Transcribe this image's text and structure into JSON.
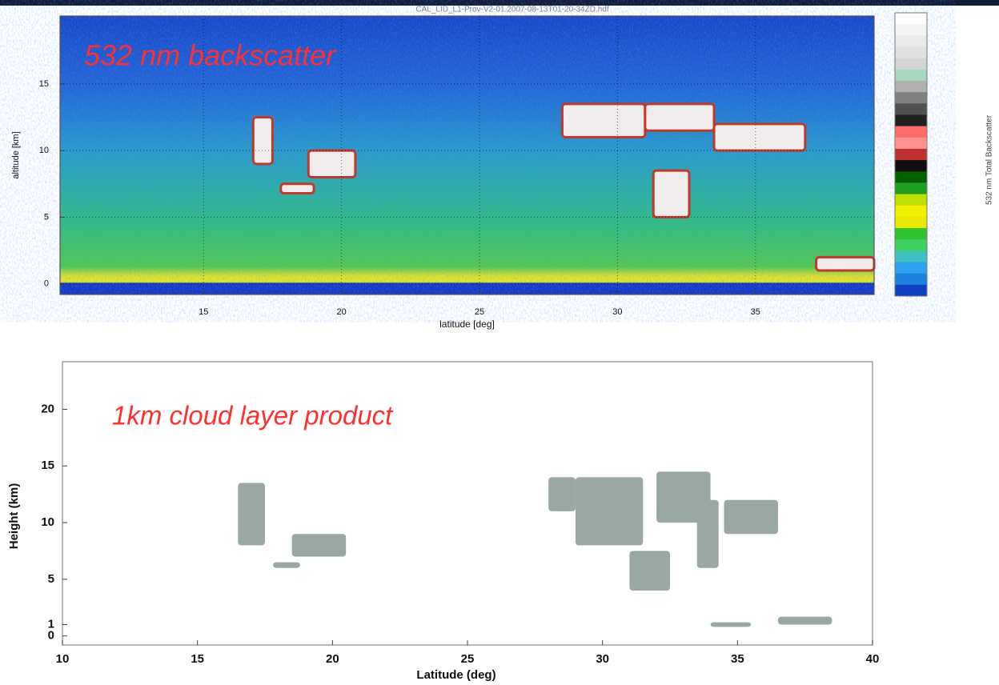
{
  "chart_data": [
    {
      "type": "heatmap",
      "title": "CAL_LID_L1-Prov-V2-01.2007-08-13T01-20-34ZD.hdf",
      "annotation": "532 nm backscatter",
      "xlabel": "latitude [deg]",
      "ylabel": "altitude [km]",
      "colorbar_label": "532 nm Total Backscatter",
      "xlim": [
        9.8,
        39.3
      ],
      "ylim": [
        -0.8,
        20.1
      ],
      "xticks": [
        15,
        20,
        25,
        30,
        35
      ],
      "yticks": [
        0,
        5,
        10,
        15
      ],
      "grid": true,
      "cloud_color": "#f2eded",
      "cloud_edge_color": "#c0392b",
      "clouds": [
        {
          "x": [
            16.8,
            17.5
          ],
          "y": [
            9,
            12.5
          ]
        },
        {
          "x": [
            17.8,
            19
          ],
          "y": [
            6.8,
            7.5
          ]
        },
        {
          "x": [
            18.8,
            20.5
          ],
          "y": [
            8,
            10
          ]
        },
        {
          "x": [
            28,
            31
          ],
          "y": [
            11,
            13.5
          ]
        },
        {
          "x": [
            31,
            33.5
          ],
          "y": [
            11.5,
            13.5
          ]
        },
        {
          "x": [
            33.5,
            36.8
          ],
          "y": [
            10,
            12
          ]
        },
        {
          "x": [
            31.3,
            32.6
          ],
          "y": [
            5,
            8.5
          ]
        },
        {
          "x": [
            37.2,
            39.3
          ],
          "y": [
            1,
            2
          ]
        }
      ],
      "colorbar_colors": [
        "#ffffff",
        "#f4f4f4",
        "#eaeaea",
        "#e0e0e0",
        "#d4d4d4",
        "#a8d8c0",
        "#b0b0b0",
        "#808080",
        "#505050",
        "#202020",
        "#ff6a6a",
        "#ff9090",
        "#c03030",
        "#101010",
        "#006000",
        "#20a020",
        "#c0e000",
        "#f0f000",
        "#e8e800",
        "#30c030",
        "#40d060",
        "#40c0c0",
        "#30a0f0",
        "#2080e0",
        "#1040c0"
      ]
    },
    {
      "type": "regions",
      "annotation": "1km cloud layer product",
      "xlabel": "Latitude (deg)",
      "ylabel": "Height (km)",
      "xlim": [
        10,
        40
      ],
      "ylim": [
        -0.8,
        24.2
      ],
      "xticks": [
        10,
        15,
        20,
        25,
        30,
        35,
        40
      ],
      "yticks": [
        0,
        1,
        5,
        10,
        15,
        20
      ],
      "grid": false,
      "cloud_color": "#9aa8a4",
      "clouds": [
        {
          "x": [
            16.5,
            17.5
          ],
          "y": [
            8,
            13.5
          ]
        },
        {
          "x": [
            17.8,
            18.8
          ],
          "y": [
            6,
            6.5
          ]
        },
        {
          "x": [
            18.5,
            20.5
          ],
          "y": [
            7,
            9
          ]
        },
        {
          "x": [
            28,
            29
          ],
          "y": [
            11,
            14
          ]
        },
        {
          "x": [
            29,
            31.5
          ],
          "y": [
            8,
            14
          ]
        },
        {
          "x": [
            31,
            32.5
          ],
          "y": [
            4,
            7.5
          ]
        },
        {
          "x": [
            32,
            34
          ],
          "y": [
            10,
            14.5
          ]
        },
        {
          "x": [
            33.5,
            34.3
          ],
          "y": [
            6,
            12
          ]
        },
        {
          "x": [
            34.5,
            36.5
          ],
          "y": [
            9,
            12
          ]
        },
        {
          "x": [
            36.5,
            38.5
          ],
          "y": [
            1,
            1.7
          ]
        },
        {
          "x": [
            34,
            35.5
          ],
          "y": [
            0.8,
            1.2
          ]
        }
      ]
    }
  ]
}
